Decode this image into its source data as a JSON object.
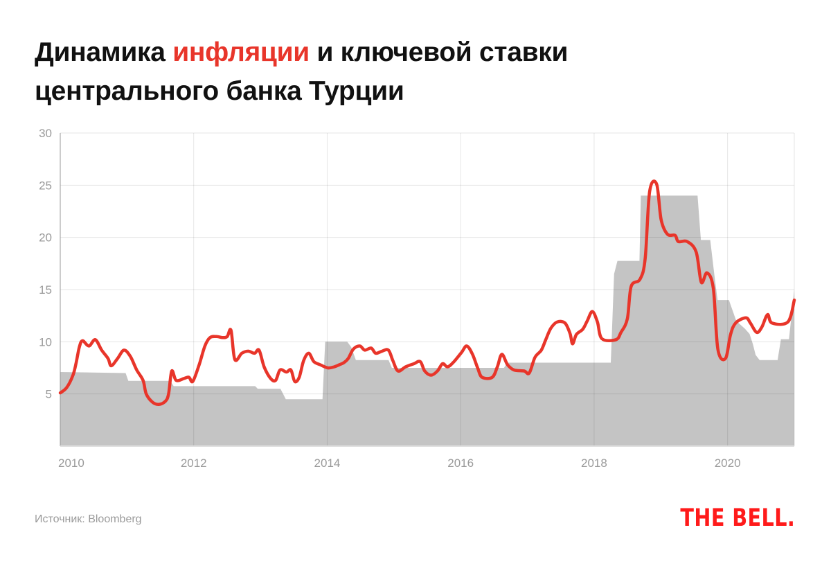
{
  "title": {
    "part1": "Динамика ",
    "highlight": "инфляции",
    "part2": " и ключевой ставки",
    "line2": "центрального банка Турции"
  },
  "source": "Источник: Bloomberg",
  "logo": "THE BELL.",
  "colors": {
    "inflation": "#e8352a",
    "policy_rate": "#c4c4c4",
    "accent": "#ff1a1a"
  },
  "chart_data": {
    "type": "area+line",
    "title": "Динамика инфляции и ключевой ставки центрального банка Турции",
    "xlabel": "",
    "ylabel": "",
    "ylim": [
      0,
      30
    ],
    "xlim": [
      2010,
      2021
    ],
    "y_ticks": [
      "5",
      "10",
      "15",
      "20",
      "25",
      "30"
    ],
    "x_ticks": [
      "2010",
      "2012",
      "2014",
      "2016",
      "2018",
      "2020"
    ],
    "grid": true,
    "legend": "none",
    "inflation": [
      [
        2010.0,
        5.1
      ],
      [
        2010.1,
        5.6
      ],
      [
        2010.2,
        6.8
      ],
      [
        2010.25,
        8.0
      ],
      [
        2010.3,
        9.5
      ],
      [
        2010.35,
        10.1
      ],
      [
        2010.45,
        9.6
      ],
      [
        2010.55,
        10.2
      ],
      [
        2010.65,
        9.2
      ],
      [
        2010.75,
        8.4
      ],
      [
        2010.8,
        7.7
      ],
      [
        2010.9,
        8.4
      ],
      [
        2011.0,
        9.2
      ],
      [
        2011.1,
        8.6
      ],
      [
        2011.2,
        7.3
      ],
      [
        2011.3,
        6.3
      ],
      [
        2011.35,
        5.0
      ],
      [
        2011.45,
        4.2
      ],
      [
        2011.55,
        4.0
      ],
      [
        2011.65,
        4.3
      ],
      [
        2011.7,
        5.0
      ],
      [
        2011.75,
        7.2
      ],
      [
        2011.82,
        6.3
      ],
      [
        2011.95,
        6.5
      ],
      [
        2012.02,
        6.6
      ],
      [
        2012.08,
        6.2
      ],
      [
        2012.18,
        7.8
      ],
      [
        2012.27,
        9.6
      ],
      [
        2012.35,
        10.4
      ],
      [
        2012.45,
        10.5
      ],
      [
        2012.55,
        10.4
      ],
      [
        2012.62,
        10.5
      ],
      [
        2012.68,
        11.1
      ],
      [
        2012.74,
        8.3
      ],
      [
        2012.85,
        8.9
      ],
      [
        2012.95,
        9.1
      ],
      [
        2013.05,
        8.9
      ],
      [
        2013.12,
        9.2
      ],
      [
        2013.2,
        7.6
      ],
      [
        2013.3,
        6.5
      ],
      [
        2013.38,
        6.3
      ],
      [
        2013.45,
        7.3
      ],
      [
        2013.55,
        7.1
      ],
      [
        2013.62,
        7.3
      ],
      [
        2013.68,
        6.2
      ],
      [
        2013.75,
        6.6
      ],
      [
        2013.82,
        8.2
      ],
      [
        2013.9,
        8.9
      ],
      [
        2013.98,
        8.1
      ],
      [
        2014.08,
        7.8
      ],
      [
        2014.2,
        7.5
      ],
      [
        2014.3,
        7.6
      ],
      [
        2014.38,
        7.8
      ],
      [
        2014.45,
        8.0
      ],
      [
        2014.52,
        8.4
      ],
      [
        2014.6,
        9.3
      ],
      [
        2014.7,
        9.6
      ],
      [
        2014.78,
        9.2
      ],
      [
        2014.88,
        9.4
      ],
      [
        2014.95,
        8.9
      ],
      [
        2015.05,
        9.1
      ],
      [
        2015.15,
        9.2
      ],
      [
        2015.22,
        8.2
      ],
      [
        2015.3,
        7.2
      ],
      [
        2015.42,
        7.6
      ],
      [
        2015.55,
        7.9
      ],
      [
        2015.65,
        8.1
      ],
      [
        2015.72,
        7.2
      ],
      [
        2015.82,
        6.8
      ],
      [
        2015.92,
        7.2
      ],
      [
        2016.0,
        7.9
      ],
      [
        2016.08,
        7.6
      ],
      [
        2016.18,
        8.1
      ],
      [
        2016.3,
        9.0
      ],
      [
        2016.38,
        9.6
      ],
      [
        2016.47,
        8.8
      ],
      [
        2016.55,
        7.5
      ],
      [
        2016.62,
        6.6
      ],
      [
        2016.78,
        6.6
      ],
      [
        2016.86,
        7.6
      ],
      [
        2016.93,
        8.8
      ],
      [
        2017.02,
        7.8
      ],
      [
        2017.12,
        7.3
      ],
      [
        2017.28,
        7.2
      ],
      [
        2017.36,
        7.0
      ],
      [
        2017.45,
        8.5
      ],
      [
        2017.55,
        9.2
      ],
      [
        2017.62,
        10.2
      ],
      [
        2017.7,
        11.3
      ],
      [
        2017.8,
        11.9
      ],
      [
        2017.92,
        11.8
      ],
      [
        2018.0,
        10.8
      ],
      [
        2018.04,
        9.8
      ],
      [
        2018.1,
        10.7
      ],
      [
        2018.2,
        11.2
      ],
      [
        2018.27,
        12.0
      ],
      [
        2018.35,
        12.9
      ],
      [
        2018.43,
        11.9
      ],
      [
        2018.5,
        10.3
      ],
      [
        2018.72,
        10.2
      ],
      [
        2018.8,
        10.9
      ],
      [
        2018.9,
        12.2
      ],
      [
        2018.96,
        15.3
      ],
      [
        2019.1,
        16.0
      ],
      [
        2019.18,
        18.0
      ],
      [
        2019.25,
        24.4
      ],
      [
        2019.36,
        25.1
      ],
      [
        2019.43,
        21.7
      ],
      [
        2019.53,
        20.3
      ],
      [
        2019.65,
        20.2
      ],
      [
        2019.7,
        19.6
      ],
      [
        2019.84,
        19.6
      ],
      [
        2019.98,
        18.6
      ],
      [
        2020.06,
        15.7
      ],
      [
        2020.15,
        16.6
      ],
      [
        2020.25,
        15.1
      ],
      [
        2020.32,
        9.3
      ],
      [
        2020.44,
        8.4
      ],
      [
        2020.52,
        10.7
      ],
      [
        2020.6,
        11.8
      ],
      [
        2020.76,
        12.3
      ],
      [
        2020.83,
        11.8
      ],
      [
        2020.93,
        10.9
      ],
      [
        2021.01,
        11.4
      ],
      [
        2021.1,
        12.6
      ],
      [
        2021.17,
        11.8
      ],
      [
        2021.42,
        11.9
      ],
      [
        2021.52,
        14.0
      ]
    ],
    "policy_rate": [
      [
        2010.0,
        7.1
      ],
      [
        2010.98,
        7.0
      ],
      [
        2011.02,
        6.25
      ],
      [
        2011.65,
        6.25
      ],
      [
        2011.7,
        5.75
      ],
      [
        2012.92,
        5.75
      ],
      [
        2012.96,
        5.5
      ],
      [
        2013.3,
        5.5
      ],
      [
        2013.38,
        4.5
      ],
      [
        2013.93,
        4.5
      ],
      [
        2013.97,
        10.0
      ],
      [
        2014.3,
        10.0
      ],
      [
        2014.36,
        9.5
      ],
      [
        2014.43,
        8.25
      ],
      [
        2014.92,
        8.25
      ],
      [
        2014.97,
        7.5
      ],
      [
        2016.65,
        7.5
      ],
      [
        2016.7,
        8.0
      ],
      [
        2018.25,
        8.0
      ],
      [
        2018.3,
        16.5
      ],
      [
        2018.35,
        17.75
      ],
      [
        2018.68,
        17.75
      ],
      [
        2018.7,
        24.0
      ],
      [
        2019.55,
        24.0
      ],
      [
        2019.6,
        19.75
      ],
      [
        2019.74,
        19.75
      ],
      [
        2019.8,
        16.5
      ],
      [
        2019.85,
        14.0
      ],
      [
        2020.02,
        14.0
      ],
      [
        2020.13,
        12.0
      ],
      [
        2020.26,
        11.25
      ],
      [
        2020.33,
        10.75
      ],
      [
        2020.38,
        9.75
      ],
      [
        2020.42,
        8.75
      ],
      [
        2020.48,
        8.25
      ],
      [
        2020.75,
        8.25
      ],
      [
        2020.8,
        10.25
      ],
      [
        2020.92,
        10.25
      ],
      [
        2021.0,
        15.0
      ]
    ]
  }
}
